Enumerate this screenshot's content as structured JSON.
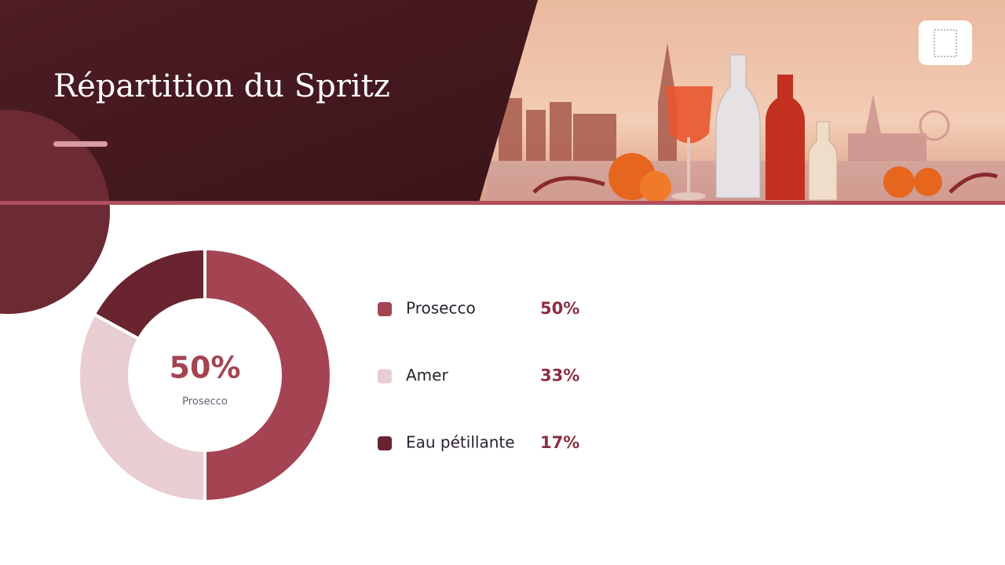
{
  "chart_data": {
    "type": "pie",
    "donut": true,
    "title": "Répartition du Spritz",
    "categories": [
      "Prosecco",
      "Amer",
      "Eau pétillante"
    ],
    "values": [
      50,
      33,
      17
    ],
    "value_labels": [
      "50%",
      "33%",
      "17%"
    ],
    "colors": [
      "#a44452",
      "#e8cdd1",
      "#6a2430"
    ]
  }
}
